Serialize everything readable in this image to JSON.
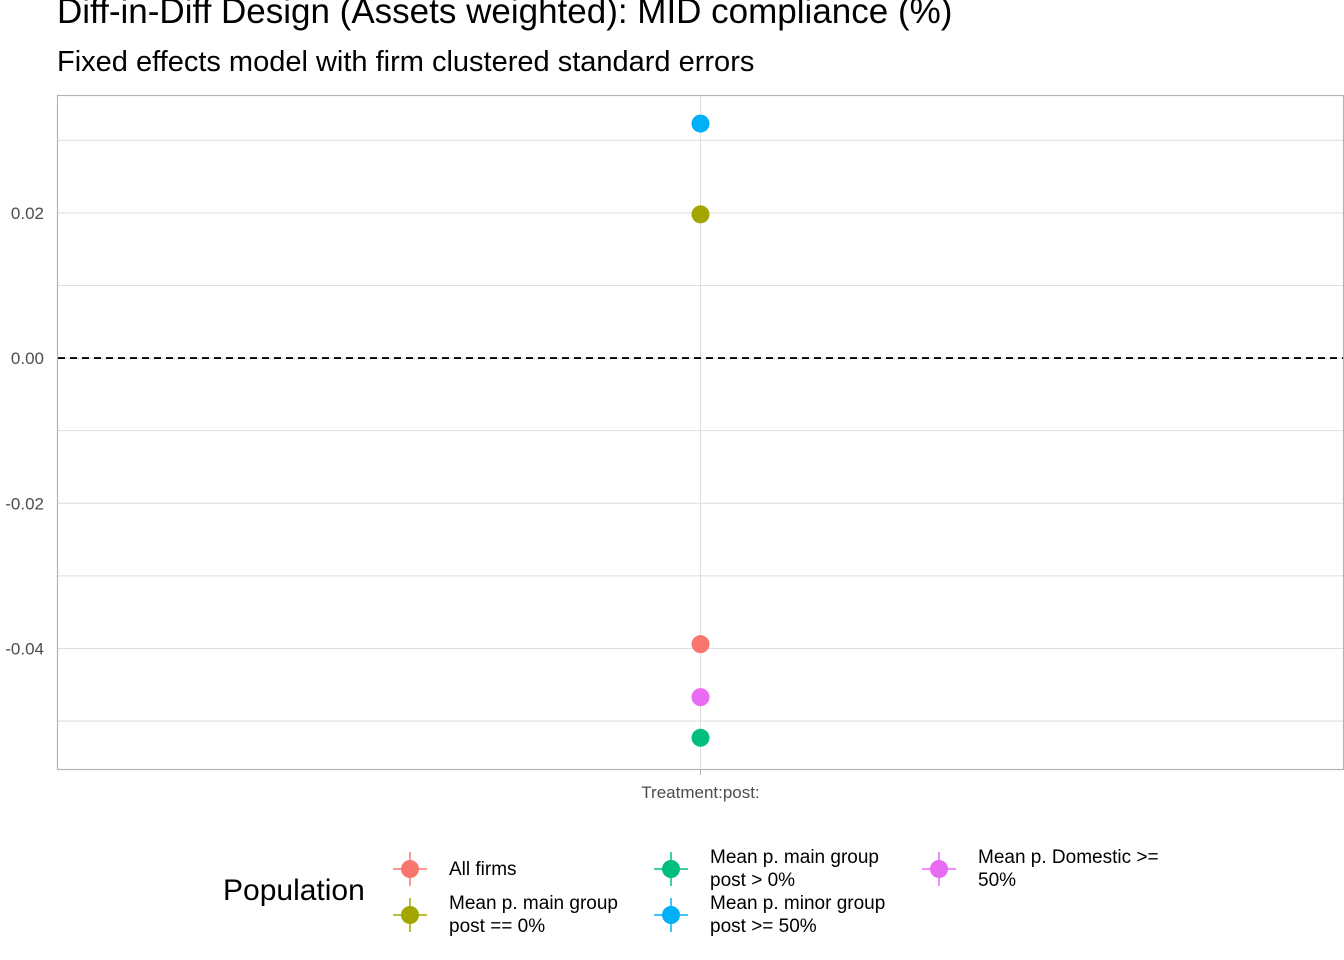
{
  "chart_data": {
    "type": "scatter",
    "title": "Diff-in-Diff Design (Assets weighted): MID compliance (%)",
    "subtitle": "Fixed effects model with firm clustered standard errors",
    "xlabel": "",
    "ylabel": "",
    "categories": [
      "Treatment:post:"
    ],
    "ylim": [
      -0.0566,
      0.0361
    ],
    "y_ticks": [
      0.02,
      0.0,
      -0.02,
      -0.04
    ],
    "y_tick_labels": [
      "0.02",
      "0.00",
      "-0.02",
      "-0.04"
    ],
    "reference_line": {
      "y": 0.0,
      "style": "dashed"
    },
    "grid": true,
    "legend_title": "Population",
    "legend_position": "bottom",
    "series": [
      {
        "name": "All firms",
        "color": "#F8766D",
        "values": [
          -0.0394
        ]
      },
      {
        "name": "Mean p. main group\npost == 0%",
        "color": "#A3A500",
        "values": [
          0.0198
        ]
      },
      {
        "name": "Mean p. main group\npost > 0%",
        "color": "#00BF7D",
        "values": [
          -0.0523
        ]
      },
      {
        "name": "Mean p. minor group\npost >= 50%",
        "color": "#00B0F6",
        "values": [
          0.0323
        ]
      },
      {
        "name": "Mean p. Domestic >=\n50%",
        "color": "#E76BF3",
        "values": [
          -0.0467
        ]
      }
    ]
  }
}
